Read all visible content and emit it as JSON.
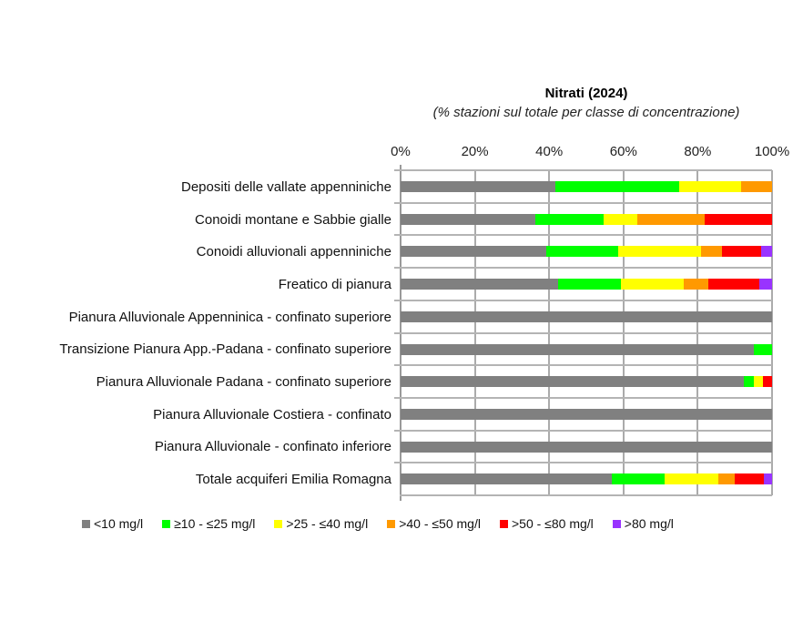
{
  "chart_data": {
    "type": "bar",
    "orientation": "horizontal",
    "stacked": true,
    "title": "Nitrati (2024)",
    "subtitle": "(% stazioni sul totale per classe di concentrazione)",
    "xlabel": "",
    "ylabel": "",
    "xlim": [
      0,
      100
    ],
    "x_ticks": [
      "0%",
      "20%",
      "40%",
      "60%",
      "80%",
      "100%"
    ],
    "grid": true,
    "legend_position": "bottom",
    "categories": [
      "Depositi delle vallate appenniniche",
      "Conoidi montane e Sabbie gialle",
      "Conoidi alluvionali appenniniche",
      "Freatico di pianura",
      "Pianura Alluvionale Appenninica - confinato superiore",
      "Transizione Pianura App.-Padana - confinato superiore",
      "Pianura Alluvionale Padana - confinato superiore",
      "Pianura Alluvionale Costiera - confinato",
      "Pianura Alluvionale - confinato inferiore",
      "Totale acquiferi Emilia Romagna"
    ],
    "series": [
      {
        "name": "<10 mg/l",
        "color": "#808080",
        "values": [
          41.7,
          36.4,
          39.3,
          42.3,
          100,
          95.2,
          92.5,
          100,
          100,
          56.9
        ]
      },
      {
        "name": "≥10 - ≤25 mg/l",
        "color": "#00ff00",
        "values": [
          33.3,
          18.2,
          19.4,
          17.0,
          0,
          4.8,
          2.5,
          0,
          0,
          14.3
        ]
      },
      {
        "name": ">25 - ≤40 mg/l",
        "color": "#ffff00",
        "values": [
          16.7,
          9.1,
          22.1,
          17.0,
          0,
          0,
          2.5,
          0,
          0,
          14.3
        ]
      },
      {
        "name": ">40 - ≤50 mg/l",
        "color": "#ff9900",
        "values": [
          8.3,
          18.2,
          5.7,
          6.5,
          0,
          0,
          0,
          0,
          0,
          4.5
        ]
      },
      {
        "name": ">50 - ≤80 mg/l",
        "color": "#ff0000",
        "values": [
          0,
          18.2,
          10.5,
          13.8,
          0,
          0,
          2.5,
          0,
          0,
          7.9
        ]
      },
      {
        "name": ">80 mg/l",
        "color": "#9933ff",
        "values": [
          0,
          0,
          3.0,
          3.4,
          0,
          0,
          0,
          0,
          0,
          2.1
        ]
      }
    ]
  }
}
